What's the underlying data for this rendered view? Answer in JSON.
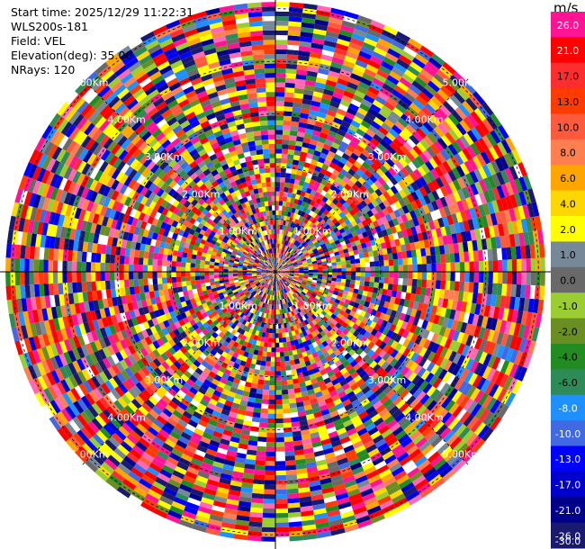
{
  "header": {
    "start_time": "Start time: 2025/12/29 11:22:31",
    "instrument": "WLS200s-181",
    "field": "Field: VEL",
    "elevation": "Elevation(deg): 35.00",
    "nrays": "NRays: 120"
  },
  "colorbar": {
    "unit": "m/s",
    "levels": [
      {
        "label": "26.0",
        "color": "#ff1493"
      },
      {
        "label": "21.0",
        "color": "#ff0000"
      },
      {
        "label": "17.0",
        "color": "#ff2d2d"
      },
      {
        "label": "13.0",
        "color": "#ff3b00"
      },
      {
        "label": "10.0",
        "color": "#ff5a3c"
      },
      {
        "label": "8.0",
        "color": "#ff7f50"
      },
      {
        "label": "6.0",
        "color": "#ffa500"
      },
      {
        "label": "4.0",
        "color": "#ffd700"
      },
      {
        "label": "2.0",
        "color": "#ffff00"
      },
      {
        "label": "1.0",
        "color": "#778899"
      },
      {
        "label": "0.0",
        "color": "#696969"
      },
      {
        "label": "-1.0",
        "color": "#9acd32"
      },
      {
        "label": "-2.0",
        "color": "#6b8e23"
      },
      {
        "label": "-4.0",
        "color": "#228b22"
      },
      {
        "label": "-6.0",
        "color": "#2e8b57"
      },
      {
        "label": "-8.0",
        "color": "#1e90ff"
      },
      {
        "label": "-10.0",
        "color": "#4169e1"
      },
      {
        "label": "-13.0",
        "color": "#0000ff"
      },
      {
        "label": "-17.0",
        "color": "#0000cd"
      },
      {
        "label": "-21.0",
        "color": "#00008b"
      },
      {
        "label": "-26.0",
        "color": "#191970"
      },
      {
        "label": "-30.0",
        "color": "#191970"
      }
    ]
  },
  "chart_data": {
    "type": "heatmap",
    "projection": "polar-ppi",
    "field": "VEL",
    "elevation_deg": 35.0,
    "n_rays": 120,
    "range_rings_km": [
      1.0,
      2.0,
      3.0,
      4.0,
      5.0
    ],
    "range_ring_labels": [
      "1.00Km",
      "2.00Km",
      "3.00Km",
      "4.00Km",
      "5.00Km"
    ],
    "spokes_deg": [
      0,
      45,
      90,
      135,
      180,
      225,
      270,
      315
    ],
    "max_range_km": 5.2,
    "value_range": [
      -30,
      26
    ]
  }
}
